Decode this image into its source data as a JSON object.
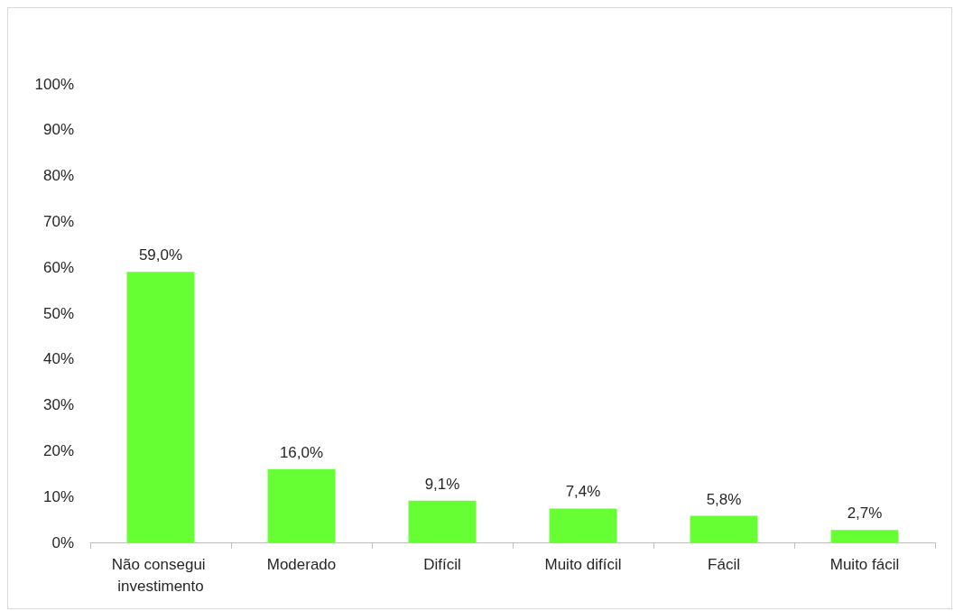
{
  "chart_data": {
    "type": "bar",
    "categories": [
      "Não consegui investimento",
      "Moderado",
      "Difícil",
      "Muito difícil",
      "Fácil",
      "Muito fácil"
    ],
    "values": [
      59.0,
      16.0,
      9.1,
      7.4,
      5.8,
      2.7
    ],
    "value_labels": [
      "59,0%",
      "16,0%",
      "9,1%",
      "7,4%",
      "5,8%",
      "2,7%"
    ],
    "color": "#66ff33",
    "ylim": [
      0,
      100
    ],
    "yticks": [
      {
        "value": 0,
        "label": "0%"
      },
      {
        "value": 10,
        "label": "10%"
      },
      {
        "value": 20,
        "label": "20%"
      },
      {
        "value": 30,
        "label": "30%"
      },
      {
        "value": 40,
        "label": "40%"
      },
      {
        "value": 50,
        "label": "50%"
      },
      {
        "value": 60,
        "label": "60%"
      },
      {
        "value": 70,
        "label": "70%"
      },
      {
        "value": 80,
        "label": "80%"
      },
      {
        "value": 90,
        "label": "90%"
      },
      {
        "value": 100,
        "label": "100%"
      }
    ],
    "grid": false
  }
}
